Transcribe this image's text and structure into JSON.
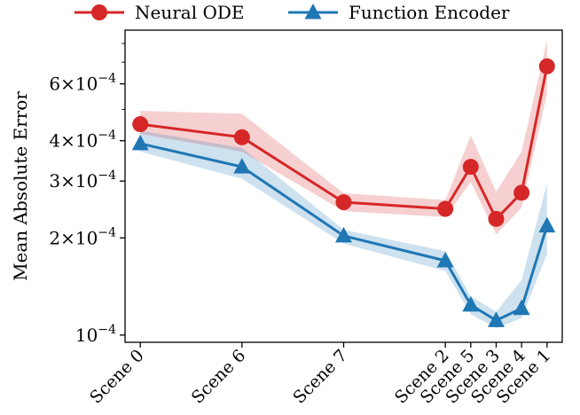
{
  "chart_data": {
    "type": "line",
    "title": "",
    "xlabel": "",
    "ylabel": "Mean Absolute Error",
    "yscale": "log",
    "ylim": [
      9.5e-05,
      0.00088
    ],
    "categories": [
      "Scene 0",
      "Scene 6",
      "Scene 7",
      "Scene 2",
      "Scene 5",
      "Scene 3",
      "Scene 4",
      "Scene 1"
    ],
    "x": [
      0,
      4,
      8,
      12,
      13,
      14,
      15,
      16
    ],
    "y_ticks": [
      {
        "value": 0.0001,
        "mantissa": "",
        "exponent": "−4"
      },
      {
        "value": 0.0002,
        "mantissa": "2",
        "exponent": "−4"
      },
      {
        "value": 0.0003,
        "mantissa": "3",
        "exponent": "−4"
      },
      {
        "value": 0.0004,
        "mantissa": "4",
        "exponent": "−4"
      },
      {
        "value": 0.0006,
        "mantissa": "6",
        "exponent": "−4"
      }
    ],
    "grid": false,
    "legend_position": "top",
    "series": [
      {
        "name": "Neural ODE",
        "color": "#d62728",
        "marker": "circle",
        "values": [
          0.00045,
          0.00041,
          0.000258,
          0.000246,
          0.000332,
          0.000229,
          0.000276,
          0.00068
        ],
        "lower": [
          0.00042,
          0.00037,
          0.000242,
          0.000232,
          0.000298,
          0.000205,
          0.000248,
          0.00056
        ],
        "upper": [
          0.000495,
          0.000485,
          0.000275,
          0.000262,
          0.000415,
          0.000278,
          0.00037,
          0.00082
        ]
      },
      {
        "name": "Function Encoder",
        "color": "#1f77b4",
        "marker": "triangle",
        "values": [
          0.000392,
          0.000332,
          0.000203,
          0.00017,
          0.000124,
          0.000111,
          0.000121,
          0.000218
        ],
        "lower": [
          0.00037,
          0.000305,
          0.000192,
          0.000158,
          0.000116,
          0.000105,
          0.000113,
          0.000178
        ],
        "upper": [
          0.00043,
          0.00038,
          0.000212,
          0.000182,
          0.000132,
          0.000118,
          0.000148,
          0.000295
        ]
      }
    ]
  }
}
